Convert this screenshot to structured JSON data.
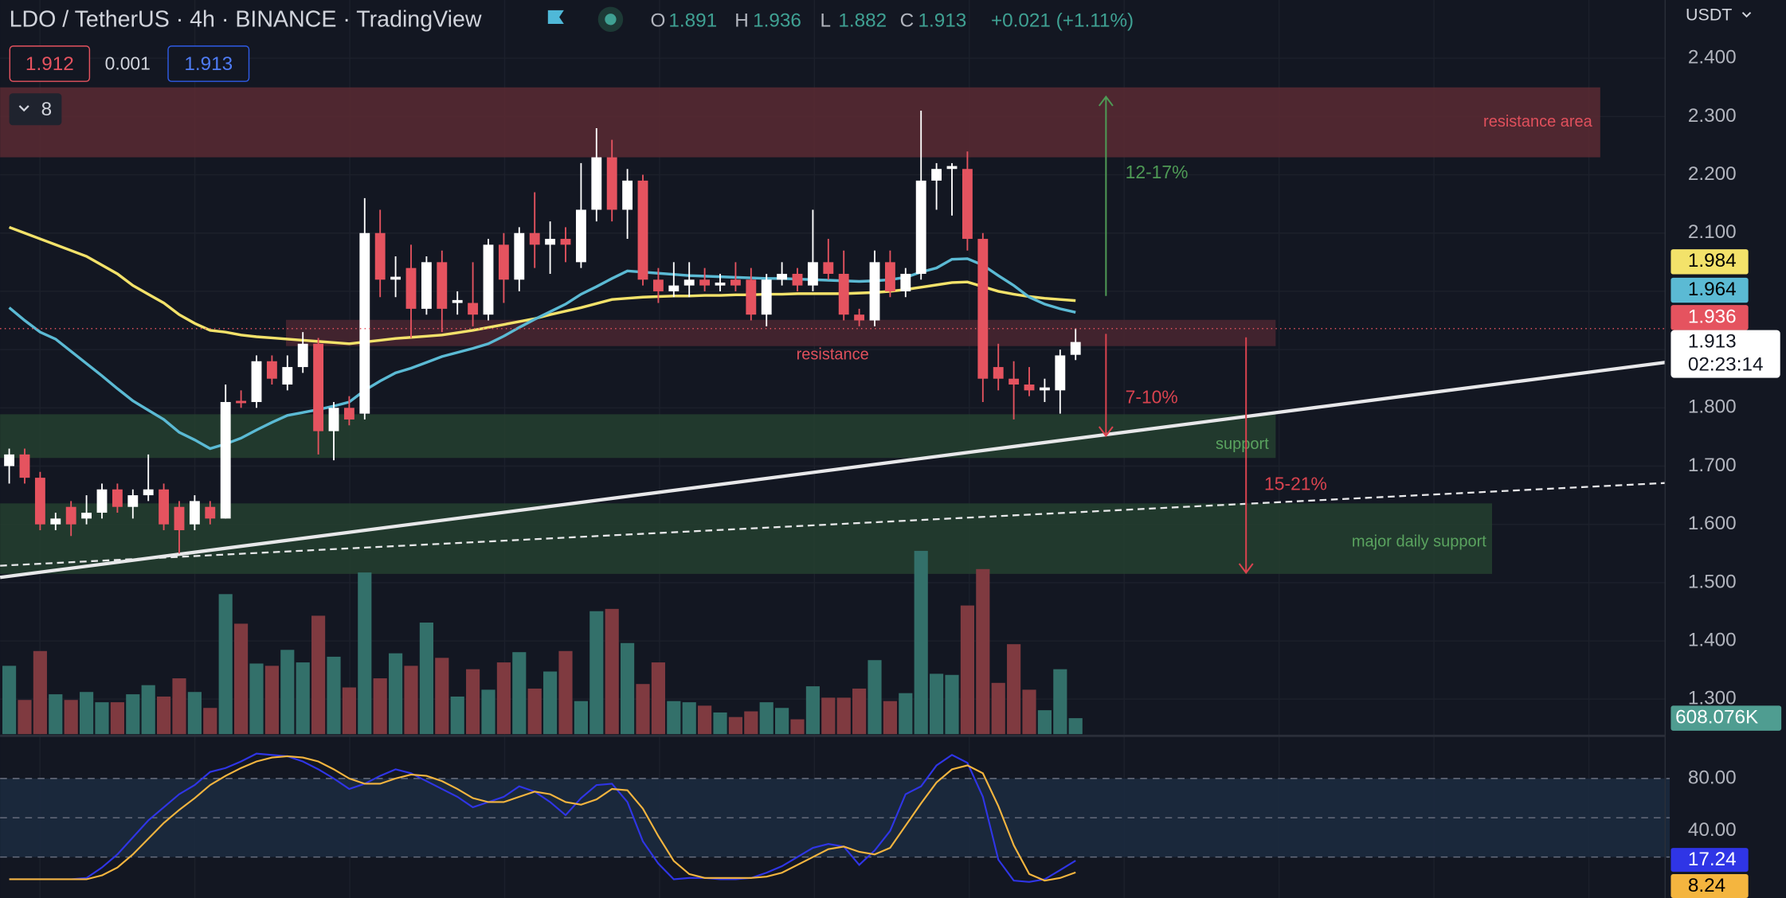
{
  "header": {
    "symbol": "LDO / TetherUS · 4h · BINANCE · TradingView",
    "o_label": "O",
    "h_label": "H",
    "l_label": "L",
    "c_label": "C",
    "change": "+0.021 (+1.11%)"
  },
  "order": {
    "sell": 1.912,
    "spread": 0.001,
    "buy": 1.913
  },
  "indicator_count": 8,
  "currency": "USDT",
  "chart_data": [
    {
      "type": "candlestick",
      "up_color": "#ffffff",
      "down_color": "#e5535f",
      "open": [
        1.7,
        1.72,
        1.68,
        1.6,
        1.63,
        1.61,
        1.62,
        1.66,
        1.63,
        1.65,
        1.66,
        1.63,
        1.6,
        1.63,
        1.61,
        1.812,
        1.81,
        1.88,
        1.84,
        1.87,
        1.91,
        1.76,
        1.8,
        1.79,
        2.1,
        2.02,
        2.04,
        1.97,
        2.05,
        1.98,
        1.98,
        1.96,
        2.08,
        2.02,
        2.1,
        2.08,
        2.09,
        2.05,
        2.14,
        2.23,
        2.14,
        2.19,
        2.02,
        2.0,
        2.01,
        2.02,
        2.01,
        2.02,
        2.02,
        1.96,
        2.02,
        2.03,
        2.01,
        2.05,
        2.03,
        1.96,
        1.95,
        2.05,
        2.0,
        2.03,
        2.19,
        2.21,
        2.21,
        2.09,
        1.87,
        1.85,
        1.84,
        1.83,
        1.83,
        1.891
      ],
      "high": [
        1.73,
        1.73,
        1.69,
        1.62,
        1.64,
        1.65,
        1.67,
        1.67,
        1.66,
        1.72,
        1.67,
        1.64,
        1.65,
        1.64,
        1.84,
        1.83,
        1.89,
        1.89,
        1.89,
        1.93,
        1.92,
        1.81,
        1.82,
        2.16,
        2.14,
        2.06,
        2.08,
        2.06,
        2.07,
        2.0,
        2.05,
        2.09,
        2.1,
        2.11,
        2.17,
        2.12,
        2.11,
        2.22,
        2.28,
        2.26,
        2.21,
        2.2,
        2.04,
        2.05,
        2.05,
        2.04,
        2.03,
        2.05,
        2.04,
        2.03,
        2.05,
        2.04,
        2.14,
        2.09,
        2.07,
        1.97,
        2.07,
        2.07,
        2.04,
        2.31,
        2.22,
        2.22,
        2.24,
        2.1,
        1.91,
        1.88,
        1.87,
        1.85,
        1.9,
        1.936
      ],
      "low": [
        1.67,
        1.67,
        1.59,
        1.59,
        1.58,
        1.6,
        1.61,
        1.62,
        1.61,
        1.64,
        1.59,
        1.55,
        1.59,
        1.6,
        1.61,
        1.8,
        1.8,
        1.84,
        1.83,
        1.86,
        1.72,
        1.71,
        1.77,
        1.78,
        1.99,
        1.99,
        1.92,
        1.96,
        1.93,
        1.96,
        1.94,
        1.95,
        1.98,
        2.0,
        2.04,
        2.03,
        2.05,
        2.04,
        2.12,
        2.12,
        2.09,
        2.01,
        1.98,
        1.99,
        1.99,
        2.0,
        2.0,
        2.0,
        1.95,
        1.94,
        2.01,
        2.0,
        2.0,
        2.02,
        1.95,
        1.94,
        1.94,
        1.99,
        1.99,
        2.02,
        2.14,
        2.13,
        2.07,
        1.81,
        1.83,
        1.78,
        1.82,
        1.81,
        1.79,
        1.882
      ],
      "close": [
        1.72,
        1.68,
        1.6,
        1.61,
        1.6,
        1.62,
        1.66,
        1.63,
        1.65,
        1.66,
        1.6,
        1.59,
        1.64,
        1.61,
        1.81,
        1.808,
        1.88,
        1.85,
        1.87,
        1.91,
        1.76,
        1.8,
        1.78,
        2.1,
        2.02,
        2.025,
        1.97,
        2.05,
        1.97,
        1.985,
        1.96,
        2.08,
        2.02,
        2.1,
        2.08,
        2.09,
        2.08,
        2.14,
        2.23,
        2.14,
        2.19,
        2.02,
        2.0,
        2.01,
        2.02,
        2.01,
        2.015,
        2.01,
        1.96,
        2.02,
        2.03,
        2.01,
        2.05,
        2.03,
        1.96,
        1.95,
        2.05,
        2.0,
        2.03,
        2.19,
        2.21,
        2.215,
        2.09,
        1.85,
        1.85,
        1.84,
        1.83,
        1.835,
        1.89,
        1.913
      ],
      "countdown": "02:23:14",
      "volume": {
        "up_color": "#33706a",
        "down_color": "#7f3a40",
        "badge_color": "#4f9d91",
        "values": [
          2604,
          1302,
          3168,
          1519,
          1302,
          1606,
          1215,
          1215,
          1519,
          1866,
          1432,
          2127,
          1606,
          998,
          5338,
          4210,
          2691,
          2604,
          3212,
          2734,
          4514,
          2951,
          1779,
          6163,
          2127,
          3081,
          2604,
          4253,
          2908,
          1432,
          2474,
          1693,
          2734,
          3125,
          1736,
          2387,
          3168,
          1259,
          4687,
          4774,
          3472,
          1910,
          2734,
          1259,
          1215,
          1085,
          825,
          651,
          868,
          1215,
          998,
          564,
          1823,
          1389,
          1389,
          1736,
          2821,
          1259,
          1562,
          6987,
          2300,
          2257,
          4904,
          6293,
          1953,
          3429,
          1693,
          911,
          2474,
          608.076
        ],
        "value_labels": [
          null,
          null,
          null,
          null,
          null,
          null,
          null,
          null,
          null,
          null,
          null,
          null,
          null,
          null,
          null,
          null,
          null,
          null,
          null,
          null,
          null,
          null,
          null,
          null,
          null,
          null,
          null,
          null,
          null,
          null,
          null,
          null,
          null,
          null,
          null,
          null,
          null,
          null,
          null,
          null,
          null,
          null,
          null,
          null,
          null,
          null,
          null,
          null,
          null,
          null,
          null,
          null,
          null,
          null,
          null,
          null,
          null,
          null,
          null,
          null,
          null,
          null,
          null,
          null,
          null,
          null,
          null,
          null,
          null,
          "608.076K"
        ]
      },
      "series": [
        {
          "color": "#f3e26a",
          "badge_text": "#000000",
          "values": [
            2.11,
            2.1,
            2.09,
            2.08,
            2.07,
            2.06,
            2.045,
            2.03,
            2.01,
            1.995,
            1.98,
            1.96,
            1.945,
            1.933,
            1.93,
            1.925,
            1.922,
            1.92,
            1.918,
            1.916,
            1.914,
            1.912,
            1.91,
            1.913,
            1.916,
            1.919,
            1.921,
            1.923,
            1.925,
            1.929,
            1.933,
            1.938,
            1.943,
            1.948,
            1.953,
            1.96,
            1.966,
            1.972,
            1.979,
            1.986,
            1.988,
            1.99,
            1.991,
            1.992,
            1.992,
            1.993,
            1.993,
            1.994,
            1.994,
            1.995,
            1.995,
            1.996,
            1.996,
            1.996,
            1.996,
            1.997,
            1.998,
            2.0,
            2.003,
            2.007,
            2.011,
            2.015,
            2.016,
            2.008,
            2.0,
            1.995,
            1.991,
            1.988,
            1.986,
            1.984
          ]
        },
        {
          "color": "#5bbad4",
          "badge_text": "#000000",
          "values": [
            1.972,
            1.95,
            1.93,
            1.918,
            1.897,
            1.876,
            1.855,
            1.833,
            1.812,
            1.796,
            1.78,
            1.758,
            1.745,
            1.73,
            1.738,
            1.748,
            1.762,
            1.775,
            1.787,
            1.792,
            1.797,
            1.803,
            1.81,
            1.83,
            1.846,
            1.86,
            1.868,
            1.878,
            1.888,
            1.895,
            1.902,
            1.91,
            1.923,
            1.938,
            1.952,
            1.965,
            1.978,
            1.995,
            2.008,
            2.022,
            2.035,
            2.033,
            2.031,
            2.029,
            2.027,
            2.026,
            2.025,
            2.024,
            2.023,
            2.022,
            2.022,
            2.021,
            2.02,
            2.019,
            2.018,
            2.017,
            2.018,
            2.02,
            2.024,
            2.033,
            2.04,
            2.055,
            2.056,
            2.045,
            2.027,
            2.01,
            1.99,
            1.978,
            1.97,
            1.964
          ]
        }
      ],
      "zones": [
        {
          "label": "resistance area",
          "from": 2.23,
          "to": 2.35,
          "color": "#5a2a33",
          "text_color": "#e0505c"
        },
        {
          "label": "resistance",
          "from": 1.906,
          "to": 1.951,
          "color": "#4a2630",
          "text_color": "#e0505c"
        },
        {
          "label": "support",
          "from": 1.714,
          "to": 1.789,
          "color": "#24402f",
          "text_color": "#5aa35f"
        },
        {
          "label": "major daily support",
          "from": 1.515,
          "to": 1.636,
          "color": "#24402f",
          "text_color": "#5aa35f"
        }
      ],
      "trendlines": [
        {
          "from": 1.509,
          "to": 1.878,
          "style": "solid"
        },
        {
          "from": 1.529,
          "to": 1.671,
          "style": "dashed"
        }
      ],
      "arrows": [
        {
          "label": "12-17%",
          "from": 1.992,
          "to": 2.334,
          "color": "#4e9a55"
        },
        {
          "label": "7-10%",
          "from": 1.927,
          "to": 1.752,
          "color": "#d9434f"
        },
        {
          "label": "15-21%",
          "from": 1.921,
          "to": 1.517,
          "color": "#d9434f"
        }
      ],
      "ylim": [
        1.24,
        2.5
      ],
      "yticks": [
        {
          "value": 2.4,
          "label": "2.400"
        },
        {
          "value": 2.3,
          "label": "2.300"
        },
        {
          "value": 2.2,
          "label": "2.200"
        },
        {
          "value": 2.1,
          "label": "2.100"
        },
        {
          "value": 2.0,
          "label": "2.000"
        },
        {
          "value": 1.9,
          "label": "1.900"
        },
        {
          "value": 1.8,
          "label": "1.800"
        },
        {
          "value": 1.7,
          "label": "1.700"
        },
        {
          "value": 1.6,
          "label": "1.600"
        },
        {
          "value": 1.5,
          "label": "1.500"
        },
        {
          "value": 1.4,
          "label": "1.400"
        },
        {
          "value": 1.3,
          "label": "1.300"
        }
      ],
      "grid": true
    },
    {
      "type": "line",
      "ylim": [
        -11.3,
        111.3
      ],
      "yticks": [
        {
          "value": 80,
          "label": "80.00"
        },
        {
          "value": 40,
          "label": "40.00"
        }
      ],
      "levels": [
        80,
        50,
        20
      ],
      "series": [
        {
          "color": "#2f35e6",
          "badge_text": "#ffffff",
          "values": [
            3,
            3,
            3,
            3,
            3,
            4,
            12,
            22,
            35,
            48,
            58,
            68,
            75,
            85,
            88,
            93,
            99,
            98,
            97,
            93,
            87,
            80,
            72,
            76,
            82,
            87,
            84,
            78,
            72,
            66,
            58,
            62,
            66,
            74,
            70,
            62,
            52,
            65,
            75,
            76,
            62,
            32,
            15,
            3,
            4,
            4,
            3,
            3,
            4,
            8,
            13,
            20,
            27,
            30,
            28,
            14,
            25,
            40,
            68,
            74,
            90,
            98,
            92,
            66,
            18,
            2,
            1,
            3,
            10,
            17.24
          ]
        },
        {
          "color": "#f4b53f",
          "badge_text": "#000000",
          "values": [
            3,
            3,
            3,
            3,
            3,
            3,
            6,
            12,
            22,
            34,
            46,
            56,
            65,
            75,
            82,
            88,
            93,
            96,
            97,
            96,
            93,
            87,
            80,
            76,
            76,
            80,
            83,
            82,
            78,
            72,
            65,
            62,
            62,
            66,
            70,
            68,
            62,
            60,
            64,
            72,
            71,
            57,
            36,
            17,
            7,
            4,
            4,
            4,
            4,
            5,
            8,
            14,
            20,
            26,
            28,
            24,
            22,
            27,
            44,
            61,
            77,
            87,
            90,
            84,
            59,
            29,
            7,
            2,
            4,
            8.24
          ]
        }
      ]
    }
  ]
}
